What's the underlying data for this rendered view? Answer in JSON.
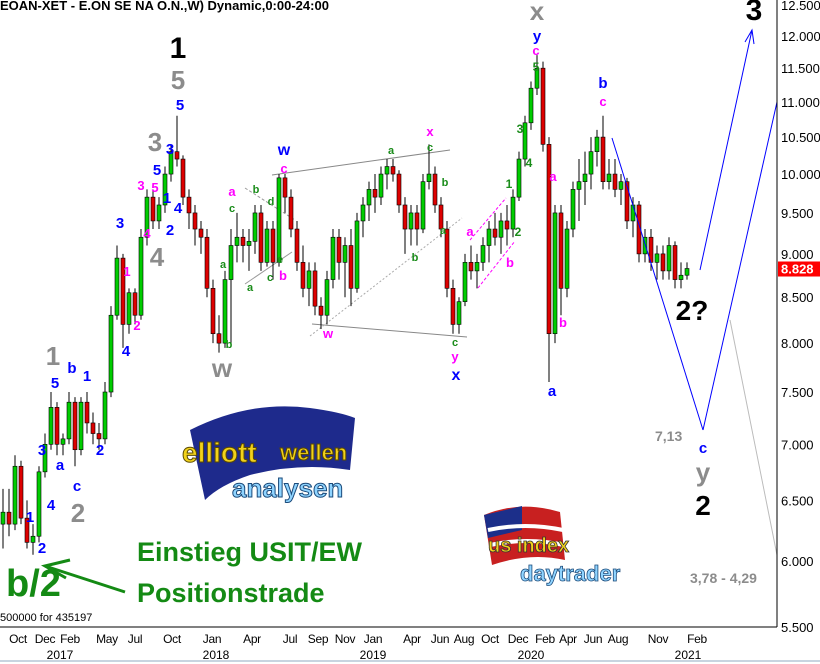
{
  "header": {
    "title": "EOAN-XET - E.ON SE NA O.N.,W) Dynamic,0:00-24:00"
  },
  "colors": {
    "up": "#00cc00",
    "down": "#dd0000",
    "price_badge": "#ff0000",
    "projection": "#0000ff",
    "entry_text": "#148a14"
  },
  "chart_data": {
    "type": "candlestick",
    "scale": "log",
    "ylim": [
      5.5,
      12.5
    ],
    "y_ticks": [
      "12.500",
      "12.000",
      "11.500",
      "11.000",
      "10.500",
      "10.000",
      "9.500",
      "9.000",
      "8.500",
      "8.000",
      "7.500",
      "7.000",
      "6.500",
      "6.000",
      "5.500"
    ],
    "y_tick_values": [
      12.5,
      12.0,
      11.5,
      11.0,
      10.5,
      10.0,
      9.5,
      9.0,
      8.5,
      8.0,
      7.5,
      7.0,
      6.5,
      6.0,
      5.5
    ],
    "last_price": "8.828",
    "x_months": [
      "Oct",
      "Dec",
      "Feb",
      "May",
      "Jul",
      "Oct",
      "Jan",
      "Apr",
      "Jul",
      "Sep",
      "Nov",
      "Jan",
      "Apr",
      "Jun",
      "Aug",
      "Oct",
      "Dec",
      "Feb",
      "Apr",
      "Jun",
      "Aug",
      "Nov",
      "Feb"
    ],
    "x_years": [
      "2017",
      "2018",
      "2019",
      "2020",
      "2021"
    ],
    "candles_ohlc": [
      [
        6.3,
        6.6,
        6.1,
        6.4
      ],
      [
        6.4,
        6.6,
        6.2,
        6.3
      ],
      [
        6.3,
        6.9,
        6.25,
        6.8
      ],
      [
        6.8,
        6.85,
        6.3,
        6.35
      ],
      [
        6.35,
        6.5,
        6.1,
        6.15
      ],
      [
        6.15,
        6.3,
        6.05,
        6.2
      ],
      [
        6.2,
        6.8,
        6.15,
        6.75
      ],
      [
        6.75,
        7.1,
        6.7,
        7.0
      ],
      [
        7.0,
        7.5,
        6.95,
        7.35
      ],
      [
        7.35,
        7.4,
        6.9,
        7.0
      ],
      [
        7.0,
        7.1,
        6.9,
        7.05
      ],
      [
        7.05,
        7.5,
        7.0,
        7.4
      ],
      [
        7.4,
        7.45,
        6.8,
        6.95
      ],
      [
        6.95,
        7.45,
        6.9,
        7.4
      ],
      [
        7.4,
        7.5,
        7.1,
        7.2
      ],
      [
        7.2,
        7.3,
        7.0,
        7.1
      ],
      [
        7.1,
        7.2,
        6.95,
        7.05
      ],
      [
        7.05,
        7.6,
        7.0,
        7.5
      ],
      [
        7.5,
        8.4,
        7.45,
        8.3
      ],
      [
        8.3,
        9.1,
        8.25,
        8.95
      ],
      [
        8.95,
        9.0,
        7.95,
        8.2
      ],
      [
        8.2,
        8.6,
        8.1,
        8.55
      ],
      [
        8.55,
        8.6,
        8.2,
        8.3
      ],
      [
        8.3,
        9.3,
        8.25,
        9.2
      ],
      [
        9.2,
        9.8,
        9.1,
        9.7
      ],
      [
        9.7,
        9.8,
        9.3,
        9.4
      ],
      [
        9.4,
        9.7,
        9.3,
        9.6
      ],
      [
        9.6,
        10.1,
        9.5,
        10.0
      ],
      [
        10.0,
        10.4,
        9.9,
        10.3
      ],
      [
        10.3,
        10.8,
        10.1,
        10.2
      ],
      [
        10.2,
        10.25,
        9.6,
        9.7
      ],
      [
        9.7,
        9.8,
        9.3,
        9.5
      ],
      [
        9.5,
        9.6,
        9.1,
        9.3
      ],
      [
        9.3,
        9.4,
        9.0,
        9.2
      ],
      [
        9.2,
        9.3,
        8.5,
        8.6
      ],
      [
        8.6,
        8.7,
        8.0,
        8.1
      ],
      [
        8.1,
        8.3,
        7.9,
        8.0
      ],
      [
        8.0,
        8.8,
        7.95,
        8.7
      ],
      [
        8.7,
        9.3,
        8.0,
        9.1
      ],
      [
        9.1,
        9.5,
        8.9,
        9.2
      ],
      [
        9.2,
        9.3,
        8.9,
        9.1
      ],
      [
        9.1,
        9.3,
        8.8,
        9.15
      ],
      [
        9.15,
        9.6,
        9.0,
        9.5
      ],
      [
        9.5,
        9.6,
        8.8,
        8.9
      ],
      [
        8.9,
        9.4,
        8.85,
        9.3
      ],
      [
        9.3,
        9.4,
        8.7,
        8.9
      ],
      [
        8.9,
        10.0,
        8.85,
        9.95
      ],
      [
        9.95,
        10.0,
        9.5,
        9.7
      ],
      [
        9.7,
        9.8,
        9.2,
        9.3
      ],
      [
        9.3,
        9.4,
        8.8,
        8.9
      ],
      [
        8.9,
        9.1,
        8.5,
        8.6
      ],
      [
        8.6,
        8.9,
        8.4,
        8.8
      ],
      [
        8.8,
        8.9,
        8.3,
        8.4
      ],
      [
        8.4,
        8.5,
        8.15,
        8.3
      ],
      [
        8.3,
        8.8,
        8.2,
        8.7
      ],
      [
        8.7,
        9.3,
        8.6,
        9.2
      ],
      [
        9.2,
        9.3,
        8.7,
        8.9
      ],
      [
        8.9,
        9.2,
        8.5,
        9.1
      ],
      [
        9.1,
        9.3,
        8.4,
        8.6
      ],
      [
        8.6,
        9.5,
        8.55,
        9.4
      ],
      [
        9.4,
        9.7,
        9.2,
        9.6
      ],
      [
        9.6,
        9.9,
        9.4,
        9.8
      ],
      [
        9.8,
        10.0,
        9.5,
        9.7
      ],
      [
        9.7,
        10.1,
        9.6,
        10.0
      ],
      [
        10.0,
        10.2,
        9.8,
        10.1
      ],
      [
        10.1,
        10.2,
        9.9,
        10.0
      ],
      [
        10.0,
        10.05,
        9.5,
        9.6
      ],
      [
        9.6,
        9.7,
        9.0,
        9.3
      ],
      [
        9.3,
        9.6,
        9.1,
        9.5
      ],
      [
        9.5,
        9.6,
        9.1,
        9.3
      ],
      [
        9.3,
        10.0,
        9.25,
        9.9
      ],
      [
        9.9,
        10.4,
        9.8,
        10.0
      ],
      [
        10.0,
        10.1,
        9.5,
        9.6
      ],
      [
        9.6,
        9.7,
        9.2,
        9.3
      ],
      [
        9.3,
        9.4,
        8.5,
        8.6
      ],
      [
        8.6,
        8.7,
        8.1,
        8.2
      ],
      [
        8.2,
        8.5,
        8.1,
        8.45
      ],
      [
        8.45,
        9.0,
        8.4,
        8.9
      ],
      [
        8.9,
        9.1,
        8.7,
        8.8
      ],
      [
        8.8,
        9.0,
        8.6,
        8.9
      ],
      [
        8.9,
        9.2,
        8.8,
        9.1
      ],
      [
        9.1,
        9.4,
        8.9,
        9.3
      ],
      [
        9.3,
        9.5,
        9.1,
        9.2
      ],
      [
        9.2,
        9.5,
        9.0,
        9.4
      ],
      [
        9.4,
        9.6,
        9.1,
        9.3
      ],
      [
        9.3,
        9.8,
        9.2,
        9.7
      ],
      [
        9.7,
        10.3,
        9.65,
        10.2
      ],
      [
        10.2,
        10.8,
        10.1,
        10.7
      ],
      [
        10.7,
        11.3,
        10.6,
        11.2
      ],
      [
        11.2,
        11.7,
        11.1,
        11.5
      ],
      [
        11.5,
        11.6,
        10.3,
        10.4
      ],
      [
        10.4,
        10.5,
        7.6,
        8.1
      ],
      [
        8.1,
        9.6,
        8.0,
        9.5
      ],
      [
        9.5,
        9.6,
        8.3,
        8.6
      ],
      [
        8.6,
        9.4,
        8.5,
        9.3
      ],
      [
        9.3,
        9.9,
        9.2,
        9.8
      ],
      [
        9.8,
        10.2,
        9.4,
        9.9
      ],
      [
        9.9,
        10.3,
        9.6,
        10.0
      ],
      [
        10.0,
        10.5,
        9.8,
        10.3
      ],
      [
        10.3,
        10.6,
        10.1,
        10.5
      ],
      [
        10.5,
        10.8,
        9.8,
        9.9
      ],
      [
        9.9,
        10.2,
        9.8,
        10.0
      ],
      [
        10.0,
        10.2,
        9.7,
        9.8
      ],
      [
        9.8,
        10.0,
        9.6,
        9.9
      ],
      [
        9.9,
        9.95,
        9.3,
        9.4
      ],
      [
        9.4,
        9.7,
        9.2,
        9.6
      ],
      [
        9.6,
        9.65,
        8.9,
        9.0
      ],
      [
        9.0,
        9.3,
        8.9,
        9.2
      ],
      [
        9.2,
        9.3,
        8.8,
        8.9
      ],
      [
        8.9,
        9.1,
        8.7,
        9.0
      ],
      [
        9.0,
        9.1,
        8.7,
        8.8
      ],
      [
        8.8,
        9.2,
        8.7,
        9.1
      ],
      [
        9.1,
        9.15,
        8.6,
        8.7
      ],
      [
        8.7,
        8.9,
        8.6,
        8.75
      ],
      [
        8.75,
        8.9,
        8.7,
        8.828
      ]
    ],
    "projection_levels": {
      "target_c": "7,13",
      "target_range": "3,78 - 4,29"
    }
  },
  "annotations": [
    {
      "text": "1",
      "color": "#8c8c8c"
    },
    {
      "text": "2",
      "color": "#8c8c8c"
    },
    {
      "text": "3",
      "color": "#8c8c8c"
    },
    {
      "text": "4",
      "color": "#8c8c8c"
    },
    {
      "text": "5",
      "color": "#8c8c8c"
    },
    {
      "text": "w",
      "color": "#8c8c8c"
    },
    {
      "text": "x",
      "color": "#8c8c8c"
    },
    {
      "text": "y",
      "color": "#8c8c8c"
    },
    {
      "text": "1",
      "color": "#000000"
    },
    {
      "text": "3",
      "color": "#000000"
    },
    {
      "text": "2?",
      "color": "#000000"
    },
    {
      "text": "2",
      "color": "#000000"
    },
    {
      "text": "2",
      "color": "#0000ff"
    },
    {
      "text": "1",
      "color": "#0000ff"
    },
    {
      "text": "4",
      "color": "#0000ff"
    },
    {
      "text": "3",
      "color": "#0000ff"
    },
    {
      "text": "a",
      "color": "#0000ff"
    },
    {
      "text": "c",
      "color": "#0000ff"
    },
    {
      "text": "5",
      "color": "#0000ff"
    },
    {
      "text": "b",
      "color": "#0000ff"
    },
    {
      "text": "1",
      "color": "#0000ff"
    },
    {
      "text": "2",
      "color": "#0000ff"
    },
    {
      "text": "3",
      "color": "#0000ff"
    },
    {
      "text": "4",
      "color": "#0000ff"
    },
    {
      "text": "5",
      "color": "#0000ff"
    },
    {
      "text": "3",
      "color": "#0000ff"
    },
    {
      "text": "1",
      "color": "#0000ff"
    },
    {
      "text": "4",
      "color": "#0000ff"
    },
    {
      "text": "2",
      "color": "#0000ff"
    },
    {
      "text": "5",
      "color": "#0000ff"
    },
    {
      "text": "w",
      "color": "#0000ff"
    },
    {
      "text": "x",
      "color": "#0000ff"
    },
    {
      "text": "y",
      "color": "#0000ff"
    },
    {
      "text": "b",
      "color": "#0000ff"
    },
    {
      "text": "a",
      "color": "#0000ff"
    },
    {
      "text": "c",
      "color": "#0000ff"
    },
    {
      "text": "1",
      "color": "#ff00ff"
    },
    {
      "text": "2",
      "color": "#ff00ff"
    },
    {
      "text": "3",
      "color": "#ff00ff"
    },
    {
      "text": "5",
      "color": "#ff00ff"
    },
    {
      "text": "4",
      "color": "#ff00ff"
    },
    {
      "text": "a",
      "color": "#ff00ff"
    },
    {
      "text": "c",
      "color": "#ff00ff"
    },
    {
      "text": "b",
      "color": "#ff00ff"
    },
    {
      "text": "w",
      "color": "#ff00ff"
    },
    {
      "text": "x",
      "color": "#ff00ff"
    },
    {
      "text": "y",
      "color": "#ff00ff"
    },
    {
      "text": "a",
      "color": "#ff00ff"
    },
    {
      "text": "b",
      "color": "#ff00ff"
    },
    {
      "text": "c",
      "color": "#ff00ff"
    },
    {
      "text": "c",
      "color": "#ff00ff"
    },
    {
      "text": "a",
      "color": "#ff00ff"
    },
    {
      "text": "b",
      "color": "#ff00ff"
    },
    {
      "text": "c",
      "color": "#1a8c1a"
    },
    {
      "text": "a",
      "color": "#1a8c1a"
    },
    {
      "text": "b",
      "color": "#1a8c1a"
    },
    {
      "text": "b",
      "color": "#1a8c1a"
    },
    {
      "text": "a",
      "color": "#1a8c1a"
    },
    {
      "text": "d",
      "color": "#1a8c1a"
    },
    {
      "text": "c",
      "color": "#1a8c1a"
    },
    {
      "text": "e",
      "color": "#1a8c1a"
    },
    {
      "text": "a",
      "color": "#1a8c1a"
    },
    {
      "text": "c",
      "color": "#1a8c1a"
    },
    {
      "text": "b",
      "color": "#1a8c1a"
    },
    {
      "text": "a",
      "color": "#1a8c1a"
    },
    {
      "text": "b",
      "color": "#1a8c1a"
    },
    {
      "text": "c",
      "color": "#1a8c1a"
    },
    {
      "text": "1",
      "color": "#1a8c1a"
    },
    {
      "text": "2",
      "color": "#1a8c1a"
    },
    {
      "text": "3",
      "color": "#1a8c1a"
    },
    {
      "text": "4",
      "color": "#1a8c1a"
    },
    {
      "text": "5",
      "color": "#1a8c1a"
    }
  ],
  "overlay": {
    "entry_line1": "Einstieg USIT/EW",
    "entry_line2": "Positionstrade",
    "wave_label": "b/2",
    "footer_note": "500000 for 435197",
    "logo_elliott": "elliott wellen analysen",
    "logo_usindex": "us index daytrader"
  }
}
